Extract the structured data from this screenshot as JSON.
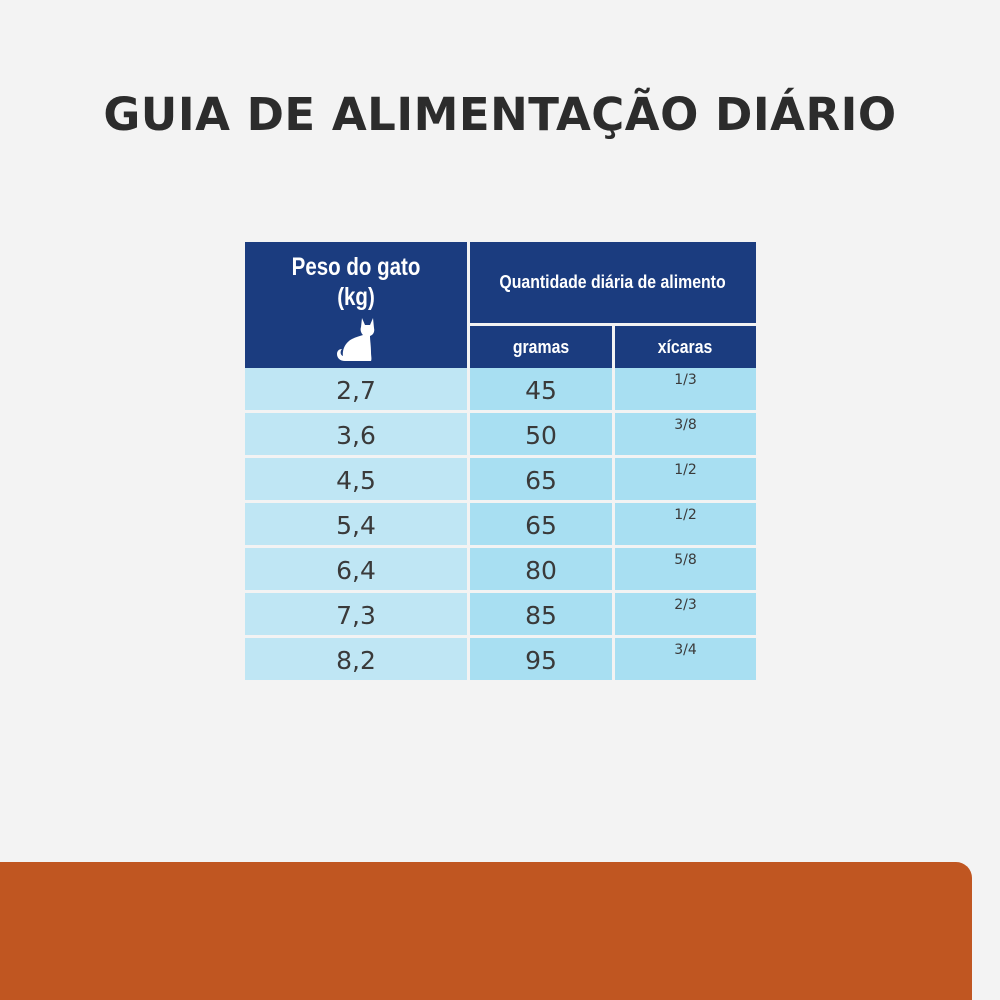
{
  "title": "GUIA DE ALIMENTAÇÃO DIÁRIO",
  "table": {
    "header": {
      "weight_line1": "Peso do gato",
      "weight_line2": "(kg)",
      "weight_icon": "cat-icon",
      "quantity": "Quantidade diária de alimento",
      "grams": "gramas",
      "cups": "xícaras"
    },
    "rows": [
      {
        "weight": "2,7",
        "grams": "45",
        "cups": "1/3"
      },
      {
        "weight": "3,6",
        "grams": "50",
        "cups": "3/8"
      },
      {
        "weight": "4,5",
        "grams": "65",
        "cups": "1/2"
      },
      {
        "weight": "5,4",
        "grams": "65",
        "cups": "1/2"
      },
      {
        "weight": "6,4",
        "grams": "80",
        "cups": "5/8"
      },
      {
        "weight": "7,3",
        "grams": "85",
        "cups": "2/3"
      },
      {
        "weight": "8,2",
        "grams": "95",
        "cups": "3/4"
      }
    ]
  },
  "colors": {
    "header_bg": "#1b3c7f",
    "weight_cell_bg": "#bfe6f4",
    "amount_cell_bg": "#a8dff2",
    "footer_band": "#c05621",
    "title_text": "#2c2c2c"
  }
}
